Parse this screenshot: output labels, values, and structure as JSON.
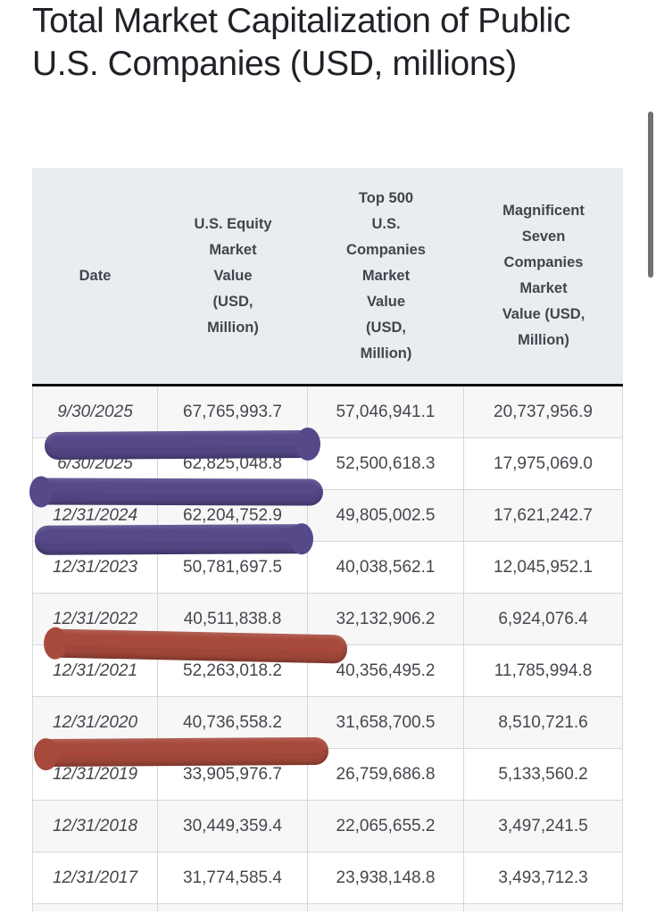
{
  "page": {
    "title": "Total Market Capitalization of Public U.S. Companies (USD, millions)"
  },
  "table": {
    "headers": [
      "Date",
      "U.S. Equity\nMarket\nValue\n(USD,\nMillion)",
      "Top 500\nU.S.\nCompanies\nMarket\nValue\n(USD,\nMillion)",
      "Magnificent\nSeven\nCompanies\nMarket\nValue (USD,\nMillion)"
    ],
    "rows": [
      [
        "9/30/2025",
        "67,765,993.7",
        "57,046,941.1",
        "20,737,956.9"
      ],
      [
        "6/30/2025",
        "62,825,048.8",
        "52,500,618.3",
        "17,975,069.0"
      ],
      [
        "12/31/2024",
        "62,204,752.9",
        "49,805,002.5",
        "17,621,242.7"
      ],
      [
        "12/31/2023",
        "50,781,697.5",
        "40,038,562.1",
        "12,045,952.1"
      ],
      [
        "12/31/2022",
        "40,511,838.8",
        "32,132,906.2",
        "6,924,076.4"
      ],
      [
        "12/31/2021",
        "52,263,018.2",
        "40,356,495.2",
        "11,785,994.8"
      ],
      [
        "12/31/2020",
        "40,736,558.2",
        "31,658,700.5",
        "8,510,721.6"
      ],
      [
        "12/31/2019",
        "33,905,976.7",
        "26,759,686.8",
        "5,133,560.2"
      ],
      [
        "12/31/2018",
        "30,449,359.4",
        "22,065,655.2",
        "3,497,241.5"
      ],
      [
        "12/31/2017",
        "31,774,585.4",
        "23,938,148.8",
        "3,493,712.3"
      ]
    ],
    "header_bg": "#e9edf0",
    "alt_row_bg": "#f7f7f8"
  },
  "annotations": {
    "marker_strokes": [
      {
        "id": "purple-marker-stroke-1",
        "type": "hand-drawn-marker",
        "color": "#564889"
      },
      {
        "id": "purple-marker-stroke-2",
        "type": "hand-drawn-marker",
        "color": "#564889"
      },
      {
        "id": "purple-marker-stroke-3",
        "type": "hand-drawn-marker",
        "color": "#564889"
      },
      {
        "id": "red-marker-stroke-1",
        "type": "hand-drawn-marker",
        "color": "#a74a3c"
      },
      {
        "id": "red-marker-stroke-2",
        "type": "hand-drawn-marker",
        "color": "#a74a3c"
      }
    ]
  },
  "scrollbar": {
    "color": "#70706f"
  }
}
